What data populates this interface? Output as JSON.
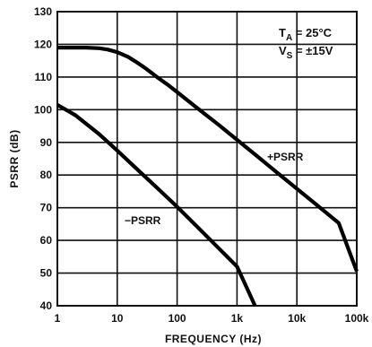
{
  "chart_data": {
    "type": "line",
    "xlabel": "FREQUENCY (Hz)",
    "ylabel": "PSRR (dB)",
    "x_scale": "log",
    "xlim": [
      1,
      100000
    ],
    "ylim": [
      40,
      130
    ],
    "x_ticks": [
      1,
      10,
      100,
      1000,
      10000,
      100000
    ],
    "x_tick_labels": [
      "1",
      "10",
      "100",
      "1k",
      "10k",
      "100k"
    ],
    "y_ticks": [
      40,
      50,
      60,
      70,
      80,
      90,
      100,
      110,
      120,
      130
    ],
    "y_tick_labels": [
      "40",
      "50",
      "60",
      "70",
      "80",
      "90",
      "100",
      "110",
      "120",
      "130"
    ],
    "grid": true,
    "conditions": {
      "ta_main": "T",
      "ta_sub": "A",
      "ta_value": " = 25°C",
      "vs_main": "V",
      "vs_sub": "S",
      "vs_value": " = ±15V"
    },
    "series": [
      {
        "name": "+PSRR",
        "x": [
          1,
          2,
          3,
          5,
          7,
          10,
          15,
          20,
          30,
          50,
          70,
          100,
          200,
          500,
          1000,
          2000,
          5000,
          10000,
          20000,
          50000,
          100000
        ],
        "values": [
          119,
          119,
          119,
          118.8,
          118.4,
          117.6,
          116.2,
          114.8,
          112.6,
          109.5,
          107.6,
          105.4,
          101,
          95.3,
          90.8,
          86.3,
          80.3,
          75.8,
          71.3,
          65.3,
          50.5
        ]
      },
      {
        "name": "−PSRR",
        "x": [
          1,
          2,
          5,
          10,
          20,
          50,
          100,
          200,
          500,
          1000,
          2000
        ],
        "values": [
          101.5,
          98.3,
          92.5,
          87.5,
          82.3,
          75.5,
          70.3,
          64.8,
          57.5,
          52,
          40
        ]
      }
    ]
  }
}
